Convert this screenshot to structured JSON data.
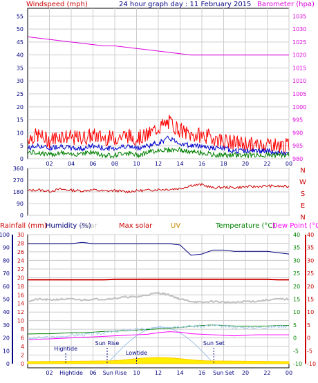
{
  "title": "24 hour graph day : 11 February 2015",
  "colors": {
    "wind": "#ff0000",
    "wind_avg": "#0000cc",
    "wind_low": "#008000",
    "barometer": "#dd00dd",
    "direction": "#cc0000",
    "rain": "#cc0000",
    "humidity": "#000080",
    "solar": "#c0c0c0",
    "max_solar": "#cc0000",
    "uv": "#cc8800",
    "temperature": "#008000",
    "dewpoint": "#ff00ff",
    "grid": "#cccccc",
    "axis_text": "#000080"
  },
  "chart_data": [
    {
      "type": "line",
      "title": "24 hour graph day : 11 February 2015",
      "ylabel_left": "Windspeed (mph)",
      "ylabel_right": "Barometer (hpa)",
      "x_ticks": [
        "02",
        "04",
        "06",
        "08",
        "10",
        "12",
        "14",
        "16",
        "18",
        "20",
        "22",
        "00"
      ],
      "y_left_ticks": [
        "0",
        "5",
        "10",
        "15",
        "20",
        "25",
        "30",
        "35",
        "40",
        "45",
        "50",
        "55"
      ],
      "y_right_ticks": [
        "980",
        "985",
        "990",
        "995",
        "1000",
        "1005",
        "1010",
        "1015",
        "1020",
        "1025",
        "1030",
        "1035"
      ],
      "ylim_left": [
        0,
        58
      ],
      "ylim_right": [
        980,
        1038
      ],
      "x_hours": [
        0,
        1,
        2,
        3,
        4,
        5,
        6,
        7,
        8,
        9,
        10,
        11,
        12,
        13,
        14,
        15,
        16,
        17,
        18,
        19,
        20,
        21,
        22,
        23,
        24
      ],
      "series": [
        {
          "values_gust": [
            8,
            9,
            7,
            9,
            8,
            8,
            9,
            8,
            8,
            9,
            8,
            9,
            12,
            14,
            11,
            9,
            9,
            8,
            7,
            6,
            6,
            5,
            6,
            5,
            5
          ]
        },
        {
          "values_avg": [
            4,
            5,
            4,
            5,
            4,
            4,
            5,
            4,
            4,
            5,
            4,
            5,
            6,
            8,
            6,
            5,
            5,
            4,
            4,
            3,
            3,
            3,
            3,
            2,
            2
          ]
        },
        {
          "values_low": [
            2,
            2,
            1,
            2,
            1,
            2,
            2,
            1,
            1,
            2,
            1,
            2,
            3,
            3,
            3,
            2,
            2,
            1,
            1,
            1,
            1,
            1,
            1,
            1,
            1
          ]
        },
        {
          "values_baro": [
            1027,
            1026.5,
            1026,
            1025.5,
            1025,
            1024.5,
            1024,
            1023.5,
            1023.5,
            1023,
            1022.5,
            1022,
            1021.5,
            1021,
            1020.5,
            1020,
            1020,
            1020,
            1020,
            1020,
            1020,
            1020,
            1020,
            1020,
            1020
          ]
        }
      ]
    },
    {
      "type": "line",
      "y_left_ticks": [
        "0",
        "90",
        "180",
        "270",
        "360"
      ],
      "y_right_labels": [
        "N",
        "W",
        "S",
        "E",
        "N"
      ],
      "ylim": [
        0,
        360
      ],
      "x_hours": [
        0,
        1,
        2,
        3,
        4,
        5,
        6,
        7,
        8,
        9,
        10,
        11,
        12,
        13,
        14,
        15,
        16,
        17,
        18,
        19,
        20,
        21,
        22,
        23,
        24
      ],
      "series": [
        {
          "values_dir": [
            190,
            195,
            185,
            200,
            192,
            188,
            195,
            185,
            190,
            180,
            188,
            192,
            198,
            200,
            205,
            230,
            235,
            210,
            215,
            212,
            218,
            220,
            225,
            222,
            220
          ]
        }
      ]
    },
    {
      "type": "line",
      "legend": [
        "Rainfall (mm)",
        "Humidity (%)",
        "Solar",
        "Max solar",
        "UV",
        "Temperature (°C)",
        "Dew Point (°C)"
      ],
      "y_rain_ticks": [
        "0",
        "2",
        "4",
        "6",
        "8",
        "10",
        "12",
        "14",
        "16",
        "18",
        "20",
        "22",
        "24",
        "26",
        "28",
        "30"
      ],
      "y_hum_ticks": [
        "0",
        "10",
        "20",
        "30",
        "40",
        "50",
        "60",
        "70",
        "80",
        "90",
        "100"
      ],
      "y_temp_ticks": [
        "-10",
        "-5",
        "0",
        "5",
        "10",
        "15",
        "20",
        "25",
        "30",
        "35",
        "40"
      ],
      "ylim_rain": [
        0,
        30
      ],
      "ylim_temp": [
        -10,
        40
      ],
      "annotations": [
        "Hightide",
        "Sun Rise",
        "Lowtide",
        "Sun Set"
      ],
      "x_tick_labels": [
        "02",
        "Hightide",
        "06",
        "Sun Rise",
        "10",
        "12",
        "14",
        "16",
        "Sun Set",
        "20",
        "22",
        "00"
      ],
      "x_hours": [
        0,
        1,
        2,
        3,
        4,
        5,
        6,
        7,
        8,
        9,
        10,
        11,
        12,
        13,
        14,
        15,
        16,
        17,
        18,
        19,
        20,
        21,
        22,
        23,
        24
      ],
      "series": [
        {
          "values_humidity": [
            93,
            93,
            93,
            93,
            93,
            94,
            93,
            93,
            93,
            93,
            93,
            93,
            93,
            93,
            92,
            84,
            85,
            88,
            88,
            87,
            87,
            87,
            87,
            86,
            85
          ]
        },
        {
          "values_rain": [
            19.5,
            19.5,
            19.5,
            19.5,
            19.5,
            19.5,
            19.5,
            19.5,
            19.6,
            19.6,
            19.6,
            19.6,
            19.6,
            19.6,
            19.6,
            19.6,
            19.6,
            19.6,
            19.6,
            19.6,
            19.6,
            19.6,
            19.6,
            19.5,
            19.5
          ]
        },
        {
          "values_solar_grey": [
            14.5,
            15,
            14.8,
            15,
            15,
            14.8,
            15,
            15,
            15.2,
            15.5,
            15.5,
            16,
            16.5,
            16,
            15,
            14.5,
            14.2,
            14.5,
            14.3,
            14.2,
            14.5,
            14.5,
            14.8,
            15,
            15
          ]
        },
        {
          "values_temp": [
            1.5,
            1.6,
            1.6,
            1.8,
            2,
            2,
            2.2,
            2.5,
            2.6,
            2.8,
            3,
            3.2,
            3.5,
            3.8,
            4,
            4.5,
            4.8,
            5,
            4.8,
            4.6,
            4.5,
            4.5,
            4.6,
            4.8,
            4.8
          ]
        },
        {
          "values_dew": [
            -0.8,
            -0.5,
            -0.4,
            -0.2,
            0,
            0.2,
            0.4,
            0.6,
            0.8,
            1,
            1.2,
            1.4,
            2,
            2.4,
            2.2,
            1.6,
            1.4,
            1.2,
            1,
            0.8,
            1,
            1.2,
            1.2,
            1.2,
            1.2
          ]
        },
        {
          "values_solar_light": [
            -0.5,
            0,
            0.2,
            0.5,
            1,
            1.2,
            1.5,
            2,
            2.5,
            3,
            3.2,
            3.5,
            4,
            4.5,
            4.5,
            4.5,
            4.5,
            4.8,
            4.5,
            4.2,
            4,
            4,
            4.2,
            4.5,
            4.6
          ]
        }
      ],
      "max_solar_curve": {
        "rise_hour": 7.3,
        "set_hour": 17.1,
        "peak_rain_units": 8.5
      }
    }
  ]
}
